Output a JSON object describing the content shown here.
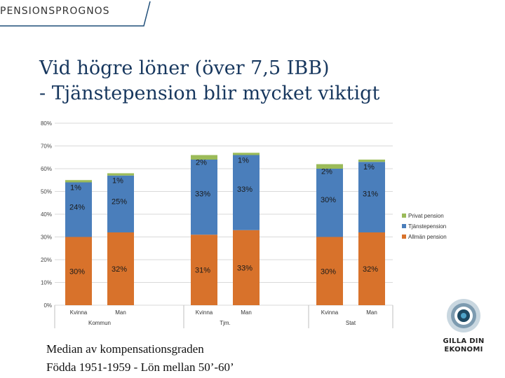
{
  "header": {
    "label": "PENSIONSPROGNOS"
  },
  "title": {
    "line1": "Vid högre löner (över 7,5 IBB)",
    "line2": "- Tjänstepension blir mycket viktigt"
  },
  "caption": {
    "line1": "Median av kompensationsgraden",
    "line2": "Födda 1951-1959 - Lön mellan 50’-60’"
  },
  "logo": {
    "line1": "GILLA DIN",
    "line2": "EKONOMI",
    "icon": "target-circle-icon"
  },
  "colors": {
    "allman": "#d8722b",
    "tjanste": "#4a7ebb",
    "privat": "#9bbb59",
    "title": "#17375e"
  },
  "chart_data": {
    "type": "bar",
    "stacked": true,
    "ylim": [
      0,
      80
    ],
    "yticks": [
      "0%",
      "10%",
      "20%",
      "30%",
      "40%",
      "50%",
      "60%",
      "70%",
      "80%"
    ],
    "groups": [
      "Kommun",
      "Tjm.",
      "Stat"
    ],
    "categories": [
      "Kvinna",
      "Man",
      "Kvinna",
      "Man",
      "Kvinna",
      "Man"
    ],
    "series": [
      {
        "name": "Allmän pension",
        "values": [
          30,
          32,
          31,
          33,
          30,
          32
        ],
        "labels": [
          "30%",
          "32%",
          "31%",
          "33%",
          "30%",
          "32%"
        ]
      },
      {
        "name": "Tjänstepension",
        "values": [
          24,
          25,
          33,
          33,
          30,
          31
        ],
        "labels": [
          "24%",
          "25%",
          "33%",
          "33%",
          "30%",
          "31%"
        ]
      },
      {
        "name": "Privat pension",
        "values": [
          1,
          1,
          2,
          1,
          2,
          1
        ],
        "labels": [
          "1%",
          "1%",
          "2%",
          "1%",
          "2%",
          "1%"
        ]
      }
    ],
    "legend": [
      "Privat pension",
      "Tjänstepension",
      "Allmän pension"
    ],
    "legend_position": "right"
  }
}
